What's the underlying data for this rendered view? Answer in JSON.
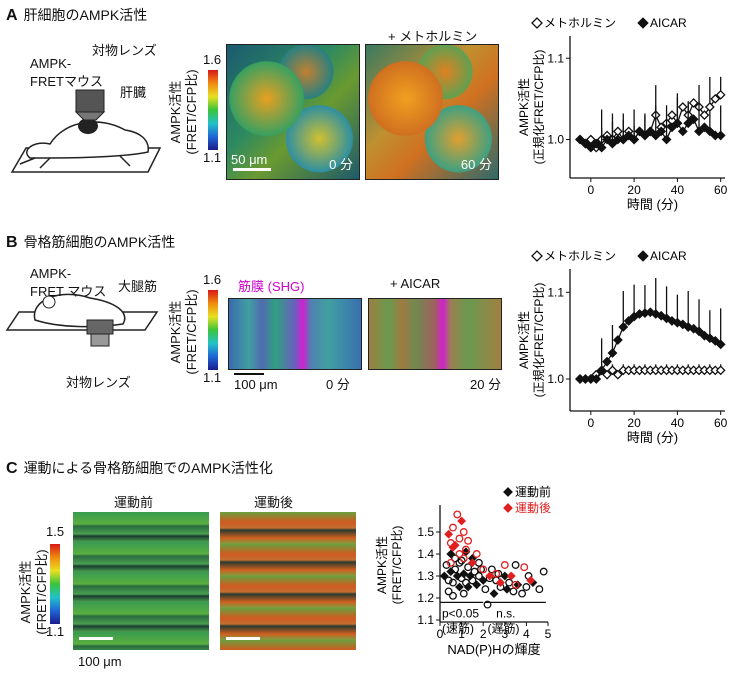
{
  "panelA": {
    "letter": "A",
    "title": "肝細胞のAMPK活性",
    "mouse_label_1": "AMPK-",
    "mouse_label_2": "FRETマウス",
    "objective_label": "対物レンズ",
    "organ_label": "肝臓",
    "cbar_label_1": "AMPK活性",
    "cbar_label_2": "(FRET/CFP比)",
    "cbar_max": "1.6",
    "cbar_min": "1.1",
    "scale_label": "50 μm",
    "image1_time": "0 分",
    "image2_header": "+ メトホルミン",
    "image2_time": "60 分"
  },
  "panelB": {
    "letter": "B",
    "title": "骨格筋細胞のAMPK活性",
    "mouse_label_1": "AMPK-",
    "mouse_label_2": "FRET マウス",
    "muscle_label": "大腿筋",
    "objective_label": "対物レンズ",
    "cbar_label_1": "AMPK活性",
    "cbar_label_2": "(FRET/CFP比)",
    "cbar_max": "1.6",
    "cbar_min": "1.1",
    "shg_label": "筋膜 (SHG)",
    "image2_header": "+ AICAR",
    "scale_label": "100 μm",
    "image1_time": "0 分",
    "image2_time": "20 分"
  },
  "panelC": {
    "letter": "C",
    "title": "運動による骨格筋細胞でのAMPK活性化",
    "image1_header": "運動前",
    "image2_header": "運動後",
    "cbar_label_1": "AMPK活性",
    "cbar_label_2": "(FRET/CFP比)",
    "cbar_max": "1.5",
    "cbar_min": "1.1",
    "scale_label": "100 μm"
  },
  "colors": {
    "black": "#111111",
    "red": "#e02020",
    "shg": "#d000d0"
  },
  "chart_data": [
    {
      "type": "line",
      "legend": [
        "メトホルミン",
        "AICAR"
      ],
      "legend_placement": "top",
      "xlabel": "時間 (分)",
      "ylabel": "AMPK活性",
      "ylabel2": "(正規化FRET/CFP比)",
      "xticks": [
        "0",
        "20",
        "40",
        "60"
      ],
      "yticks": [
        "1.0",
        "1.1"
      ],
      "xlim": [
        -5,
        62
      ],
      "ylim": [
        0.96,
        1.12
      ],
      "x": [
        -5,
        -2.5,
        0,
        2.5,
        5,
        7.5,
        10,
        12.5,
        15,
        17.5,
        20,
        22.5,
        25,
        27.5,
        30,
        32.5,
        35,
        37.5,
        40,
        42.5,
        45,
        47.5,
        50,
        52.5,
        55,
        57.5,
        60
      ],
      "series": [
        {
          "name": "メトホルミン",
          "marker": "open-diamond",
          "values": [
            1.0,
            0.995,
            1.0,
            0.99,
            1.0,
            1.005,
            1.0,
            1.01,
            1.0,
            1.01,
            1.0,
            1.01,
            1.005,
            1.01,
            1.03,
            1.015,
            1.02,
            1.03,
            1.02,
            1.04,
            1.03,
            1.045,
            1.04,
            1.03,
            1.04,
            1.05,
            1.055
          ]
        },
        {
          "name": "AICAR",
          "marker": "filled-diamond",
          "values": [
            1.0,
            0.995,
            0.99,
            0.995,
            0.99,
            1.0,
            0.995,
            1.0,
            1.0,
            1.005,
            1.0,
            1.01,
            1.005,
            1.01,
            1.005,
            1.01,
            1.0,
            1.015,
            1.02,
            1.01,
            1.02,
            1.025,
            1.01,
            1.015,
            1.01,
            1.005,
            1.005
          ]
        }
      ]
    },
    {
      "type": "line",
      "legend": [
        "メトホルミン",
        "AICAR"
      ],
      "legend_placement": "top",
      "xlabel": "時間 (分)",
      "ylabel": "AMPK活性",
      "ylabel2": "(正規化FRET/CFP比)",
      "xticks": [
        "0",
        "20",
        "40",
        "60"
      ],
      "yticks": [
        "1.0",
        "1.1"
      ],
      "xlim": [
        -5,
        62
      ],
      "ylim": [
        0.97,
        1.12
      ],
      "x": [
        -5,
        -2.5,
        0,
        2.5,
        5,
        7.5,
        10,
        12.5,
        15,
        17.5,
        20,
        22.5,
        25,
        27.5,
        30,
        32.5,
        35,
        37.5,
        40,
        42.5,
        45,
        47.5,
        50,
        52.5,
        55,
        57.5,
        60
      ],
      "series": [
        {
          "name": "メトホルミン",
          "marker": "open-diamond",
          "values": [
            1.0,
            1.0,
            1.0,
            1.005,
            1.01,
            1.005,
            1.01,
            1.005,
            1.01,
            1.01,
            1.01,
            1.01,
            1.01,
            1.01,
            1.01,
            1.01,
            1.01,
            1.01,
            1.01,
            1.01,
            1.01,
            1.01,
            1.01,
            1.01,
            1.01,
            1.01,
            1.01
          ]
        },
        {
          "name": "AICAR",
          "marker": "filled-diamond",
          "values": [
            1.0,
            1.0,
            1.0,
            1.0,
            1.01,
            1.02,
            1.03,
            1.045,
            1.06,
            1.067,
            1.072,
            1.075,
            1.076,
            1.077,
            1.075,
            1.073,
            1.07,
            1.067,
            1.065,
            1.063,
            1.06,
            1.058,
            1.055,
            1.05,
            1.047,
            1.044,
            1.04
          ]
        }
      ]
    },
    {
      "type": "scatter",
      "legend": [
        "運動前",
        "運動後"
      ],
      "legend_placement": "top-right",
      "xlabel": "NAD(P)Hの輝度",
      "ylabel": "AMPK活性",
      "ylabel2": "(FRET/CFP比)",
      "xticks": [
        "0",
        "1",
        "2",
        "3",
        "4",
        "5"
      ],
      "yticks": [
        "1.1",
        "1.2",
        "1.3",
        "1.4",
        "1.5"
      ],
      "xlim": [
        0,
        5
      ],
      "ylim": [
        1.1,
        1.6
      ],
      "annotations": [
        "p<0.05",
        "(速筋)",
        "n.s.",
        "(遅筋)"
      ],
      "series": [
        {
          "name": "運動前",
          "color": "#111111",
          "points": [
            [
              0.2,
              1.3
            ],
            [
              0.3,
              1.35
            ],
            [
              0.4,
              1.28
            ],
            [
              0.5,
              1.32
            ],
            [
              0.6,
              1.27
            ],
            [
              0.7,
              1.33
            ],
            [
              0.8,
              1.3
            ],
            [
              0.9,
              1.36
            ],
            [
              1.0,
              1.29
            ],
            [
              1.1,
              1.31
            ],
            [
              1.2,
              1.27
            ],
            [
              1.3,
              1.34
            ],
            [
              1.4,
              1.3
            ],
            [
              1.5,
              1.28
            ],
            [
              1.6,
              1.32
            ],
            [
              1.7,
              1.26
            ],
            [
              1.8,
              1.3
            ],
            [
              1.9,
              1.33
            ],
            [
              2.0,
              1.28
            ],
            [
              2.1,
              1.24
            ],
            [
              2.3,
              1.29
            ],
            [
              2.5,
              1.22
            ],
            [
              2.6,
              1.28
            ],
            [
              2.8,
              1.25
            ],
            [
              3.0,
              1.3
            ],
            [
              3.2,
              1.27
            ],
            [
              3.4,
              1.23
            ],
            [
              3.6,
              1.26
            ],
            [
              3.8,
              1.22
            ],
            [
              4.0,
              1.25
            ],
            [
              4.3,
              1.27
            ],
            [
              4.6,
              1.24
            ],
            [
              4.8,
              1.32
            ],
            [
              0.5,
              1.4
            ],
            [
              0.7,
              1.38
            ],
            [
              1.0,
              1.37
            ],
            [
              1.2,
              1.41
            ],
            [
              0.4,
              1.23
            ],
            [
              1.1,
              1.22
            ],
            [
              1.5,
              1.38
            ],
            [
              2.2,
              1.17
            ],
            [
              3.5,
              1.35
            ],
            [
              0.9,
              1.25
            ],
            [
              1.8,
              1.36
            ],
            [
              2.4,
              1.33
            ],
            [
              1.3,
              1.25
            ],
            [
              0.6,
              1.21
            ],
            [
              2.7,
              1.31
            ],
            [
              3.1,
              1.24
            ],
            [
              4.1,
              1.3
            ]
          ]
        },
        {
          "name": "運動後",
          "color": "#e02020",
          "points": [
            [
              0.4,
              1.49
            ],
            [
              0.5,
              1.45
            ],
            [
              0.6,
              1.52
            ],
            [
              0.7,
              1.44
            ],
            [
              0.8,
              1.58
            ],
            [
              0.9,
              1.47
            ],
            [
              1.0,
              1.55
            ],
            [
              1.1,
              1.5
            ],
            [
              1.2,
              1.42
            ],
            [
              0.6,
              1.43
            ],
            [
              0.9,
              1.4
            ],
            [
              1.3,
              1.46
            ],
            [
              1.5,
              1.36
            ],
            [
              1.7,
              1.4
            ],
            [
              2.0,
              1.33
            ],
            [
              2.3,
              1.3
            ],
            [
              2.6,
              1.31
            ],
            [
              3.0,
              1.35
            ],
            [
              3.3,
              1.3
            ],
            [
              3.5,
              1.26
            ],
            [
              3.9,
              1.34
            ],
            [
              4.2,
              1.28
            ],
            [
              1.1,
              1.38
            ],
            [
              0.5,
              1.36
            ],
            [
              2.8,
              1.27
            ]
          ]
        }
      ]
    }
  ]
}
